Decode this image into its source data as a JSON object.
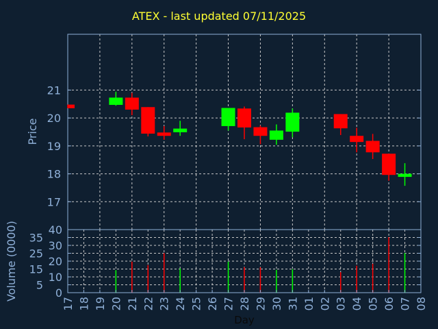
{
  "chart_data": [
    {
      "type": "candlestick",
      "title": "ATEX - last updated 07/11/2025",
      "xlabel": "Day",
      "ylabel": "Price",
      "ylim": [
        16,
        23
      ],
      "yticks": [
        17,
        18,
        19,
        20,
        21
      ],
      "grid": true,
      "x_tick_labels": [
        "17",
        "18",
        "19",
        "20",
        "21",
        "22",
        "23",
        "24",
        "25",
        "26",
        "27",
        "28",
        "29",
        "30",
        "31",
        "01",
        "02",
        "03",
        "04",
        "05",
        "06",
        "07",
        "08"
      ],
      "candles": [
        {
          "day": "17",
          "open": 20.48,
          "high": 20.48,
          "low": 20.35,
          "close": 20.35
        },
        {
          "day": "20",
          "open": 20.47,
          "high": 20.94,
          "low": 20.44,
          "close": 20.73
        },
        {
          "day": "21",
          "open": 20.73,
          "high": 20.9,
          "low": 20.1,
          "close": 20.3
        },
        {
          "day": "22",
          "open": 20.39,
          "high": 20.39,
          "low": 19.34,
          "close": 19.44
        },
        {
          "day": "23",
          "open": 19.48,
          "high": 19.71,
          "low": 19.22,
          "close": 19.36
        },
        {
          "day": "24",
          "open": 19.49,
          "high": 19.9,
          "low": 19.36,
          "close": 19.62
        },
        {
          "day": "27",
          "open": 19.71,
          "high": 20.36,
          "low": 19.55,
          "close": 20.36
        },
        {
          "day": "28",
          "open": 20.34,
          "high": 20.41,
          "low": 19.24,
          "close": 19.66
        },
        {
          "day": "29",
          "open": 19.67,
          "high": 19.73,
          "low": 19.06,
          "close": 19.36
        },
        {
          "day": "30",
          "open": 19.22,
          "high": 19.77,
          "low": 19.04,
          "close": 19.55
        },
        {
          "day": "31",
          "open": 19.51,
          "high": 20.34,
          "low": 19.31,
          "close": 20.19
        },
        {
          "day": "03",
          "open": 20.14,
          "high": 20.14,
          "low": 19.39,
          "close": 19.63
        },
        {
          "day": "04",
          "open": 19.36,
          "high": 19.65,
          "low": 18.77,
          "close": 19.14
        },
        {
          "day": "05",
          "open": 19.18,
          "high": 19.43,
          "low": 18.53,
          "close": 18.77
        },
        {
          "day": "06",
          "open": 18.72,
          "high": 18.72,
          "low": 17.75,
          "close": 17.96
        },
        {
          "day": "07",
          "open": 17.89,
          "high": 18.38,
          "low": 17.57,
          "close": 18.0
        }
      ]
    },
    {
      "type": "bar",
      "ylabel": "Volume (0000)",
      "xlabel": "Day",
      "ylim": [
        0,
        40
      ],
      "yticks": [
        0,
        5,
        10,
        15,
        20,
        25,
        30,
        35,
        40
      ],
      "grid": true,
      "bars": [
        {
          "day": "20",
          "value": 14.3,
          "direction": "up"
        },
        {
          "day": "21",
          "value": 19.7,
          "direction": "down"
        },
        {
          "day": "22",
          "value": 17.5,
          "direction": "down"
        },
        {
          "day": "23",
          "value": 25.1,
          "direction": "down"
        },
        {
          "day": "24",
          "value": 15.4,
          "direction": "up"
        },
        {
          "day": "27",
          "value": 19.7,
          "direction": "up"
        },
        {
          "day": "28",
          "value": 16.2,
          "direction": "down"
        },
        {
          "day": "29",
          "value": 16.1,
          "direction": "down"
        },
        {
          "day": "30",
          "value": 14.5,
          "direction": "up"
        },
        {
          "day": "31",
          "value": 14.9,
          "direction": "up"
        },
        {
          "day": "03",
          "value": 13.0,
          "direction": "down"
        },
        {
          "day": "04",
          "value": 17.1,
          "direction": "down"
        },
        {
          "day": "05",
          "value": 18.3,
          "direction": "down"
        },
        {
          "day": "06",
          "value": 35.2,
          "direction": "down"
        },
        {
          "day": "07",
          "value": 25.1,
          "direction": "up"
        }
      ]
    }
  ],
  "colors": {
    "up": "#00ff00",
    "down": "#ff0000",
    "axis": "#8fb0d8",
    "title": "#ffff33",
    "grid": "#c8c8c8",
    "background": "#0f1f30"
  }
}
